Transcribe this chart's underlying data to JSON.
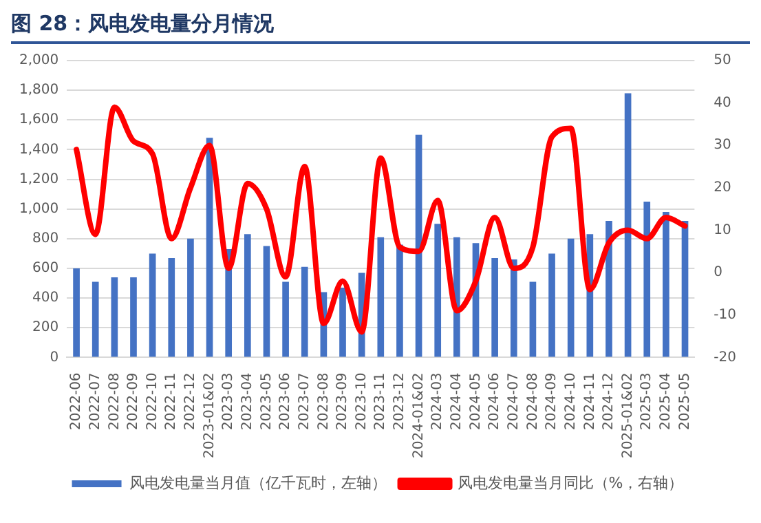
{
  "chart_data": {
    "type": "bar",
    "title": "图 28：风电发电量分月情况",
    "categories": [
      "2022-06",
      "2022-07",
      "2022-08",
      "2022-09",
      "2022-10",
      "2022-11",
      "2022-12",
      "2023-01&02",
      "2023-03",
      "2023-04",
      "2023-05",
      "2023-06",
      "2023-07",
      "2023-08",
      "2023-09",
      "2023-10",
      "2023-11",
      "2023-12",
      "2024-01&02",
      "2024-03",
      "2024-04",
      "2024-05",
      "2024-06",
      "2024-07",
      "2024-08",
      "2024-09",
      "2024-10",
      "2024-11",
      "2024-12",
      "2025-01&02",
      "2025-03",
      "2025-04",
      "2025-05"
    ],
    "series": [
      {
        "name": "风电发电量当月值（亿千瓦时，左轴）",
        "color": "#4472c4",
        "values": [
          600,
          510,
          540,
          540,
          700,
          670,
          800,
          1480,
          730,
          830,
          750,
          510,
          610,
          440,
          470,
          570,
          810,
          760,
          1500,
          900,
          810,
          770,
          670,
          660,
          510,
          700,
          800,
          830,
          920,
          1780,
          1050,
          980,
          920
        ]
      },
      {
        "name": "风电发电量当月同比（%，右轴）",
        "type": "line",
        "axis": "y2",
        "color": "#ff0000",
        "values": [
          29,
          9,
          39,
          31,
          28,
          8,
          20,
          30,
          1,
          21,
          15,
          -1,
          25,
          -12,
          -2,
          -14,
          27,
          6,
          5,
          17,
          -9,
          -2,
          13,
          1,
          6,
          32,
          34,
          -4,
          7,
          10,
          8,
          13,
          11
        ]
      }
    ],
    "ylim": [
      0,
      2000
    ],
    "yticks": [
      {
        "value": 0,
        "label": "0"
      },
      {
        "value": 200,
        "label": "200"
      },
      {
        "value": 400,
        "label": "400"
      },
      {
        "value": 600,
        "label": "600"
      },
      {
        "value": 800,
        "label": "800"
      },
      {
        "value": 1000,
        "label": "1,000"
      },
      {
        "value": 1200,
        "label": "1,200"
      },
      {
        "value": 1400,
        "label": "1,400"
      },
      {
        "value": 1600,
        "label": "1,600"
      },
      {
        "value": 1800,
        "label": "1,800"
      },
      {
        "value": 2000,
        "label": "2,000"
      }
    ],
    "y2lim": [
      -20,
      50
    ],
    "y2ticks": [
      -20,
      -10,
      0,
      10,
      20,
      30,
      40,
      50
    ],
    "grid": "y",
    "legend": "bottom",
    "marker": "none",
    "line_style": "solid"
  }
}
